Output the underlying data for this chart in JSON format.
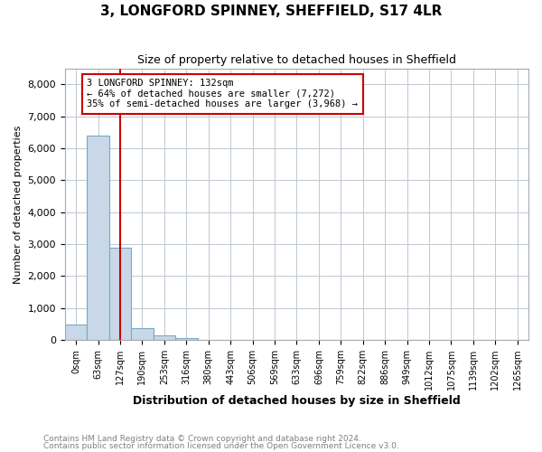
{
  "title": "3, LONGFORD SPINNEY, SHEFFIELD, S17 4LR",
  "subtitle": "Size of property relative to detached houses in Sheffield",
  "xlabel": "Distribution of detached houses by size in Sheffield",
  "ylabel": "Number of detached properties",
  "bar_values": [
    500,
    6400,
    2900,
    370,
    150,
    60,
    20,
    10,
    5,
    2,
    1,
    0,
    0,
    0,
    0,
    0,
    0,
    0,
    0,
    0,
    0
  ],
  "bar_labels": [
    "0sqm",
    "63sqm",
    "127sqm",
    "190sqm",
    "253sqm",
    "316sqm",
    "380sqm",
    "443sqm",
    "506sqm",
    "569sqm",
    "633sqm",
    "696sqm",
    "759sqm",
    "822sqm",
    "886sqm",
    "949sqm",
    "1012sqm",
    "1075sqm",
    "1139sqm",
    "1202sqm",
    "1265sqm"
  ],
  "bar_color": "#c8d8e8",
  "bar_edge_color": "#7aa8c8",
  "property_line_x": 2,
  "property_line_color": "#cc0000",
  "annotation_text": "3 LONGFORD SPINNEY: 132sqm\n← 64% of detached houses are smaller (7,272)\n35% of semi-detached houses are larger (3,968) →",
  "annotation_box_color": "#cc0000",
  "ylim": [
    0,
    8500
  ],
  "yticks": [
    0,
    1000,
    2000,
    3000,
    4000,
    5000,
    6000,
    7000,
    8000
  ],
  "footnote1": "Contains HM Land Registry data © Crown copyright and database right 2024.",
  "footnote2": "Contains public sector information licensed under the Open Government Licence v3.0.",
  "background_color": "#ffffff",
  "grid_color": "#c0c8d0"
}
